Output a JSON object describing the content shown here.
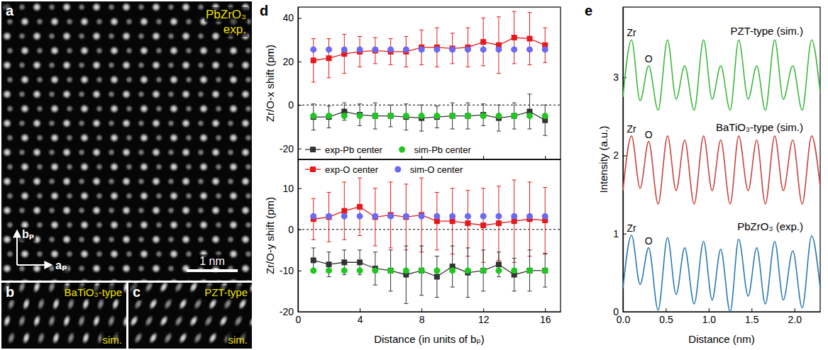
{
  "images": [
    {
      "panel": "a",
      "title": "PbZrO₃",
      "note": "exp.",
      "scale_bar": "1 nm",
      "axis_labels": [
        "bₚ",
        "aₚ"
      ]
    },
    {
      "panel": "b",
      "title": "BaTiO₃-type",
      "note": "sim."
    },
    {
      "panel": "c",
      "title": "PZT-type",
      "note": "sim."
    }
  ],
  "chart_data": [
    {
      "panel": "d",
      "type": "scatter",
      "ylabel": "Zr/O-x shift (pm)",
      "x": [
        1,
        2,
        3,
        4,
        5,
        6,
        7,
        8,
        9,
        10,
        11,
        12,
        13,
        14,
        15,
        16
      ],
      "xlim": [
        0,
        17
      ],
      "xticks": [
        0,
        4,
        8,
        12,
        16
      ],
      "ylim": [
        -25,
        45
      ],
      "yticks": [
        -20,
        0,
        20,
        40
      ],
      "tick_labels": "y",
      "legend": "lower left",
      "reference_line": 0,
      "series": [
        {
          "color": "#e5191c",
          "marker": "square",
          "line_style": "solid",
          "values": [
            20.5,
            21.5,
            23.5,
            24.5,
            25,
            24.5,
            24.5,
            26.5,
            26.5,
            26,
            26.5,
            29,
            27.5,
            31,
            30.5,
            27.5
          ],
          "errors": [
            10,
            9,
            9,
            7,
            6,
            6,
            7,
            8,
            9,
            7,
            9,
            11,
            13,
            12,
            12,
            8
          ]
        },
        {
          "color": "#6a6af5",
          "marker": "circle",
          "line_style": "none",
          "values": [
            25.5,
            25.5,
            25.5,
            25.5,
            25.5,
            25.5,
            25.5,
            25.5,
            25.5,
            25.5,
            25.5,
            25.5,
            25.5,
            25.5,
            25.5,
            25.5
          ]
        },
        {
          "name": "exp-Pb center",
          "color": "#333333",
          "marker": "square",
          "line_style": "solid",
          "values": [
            -5.5,
            -5.5,
            -3,
            -4.5,
            -5,
            -5,
            -5.5,
            -6,
            -5.5,
            -5,
            -5,
            -4.5,
            -6,
            -5,
            -3,
            -7
          ],
          "errors": [
            6,
            5,
            4,
            5,
            6,
            5,
            6,
            6,
            5,
            6,
            6,
            5,
            6,
            6,
            8,
            7
          ]
        },
        {
          "name": "sim-Pb center",
          "color": "#1ec81e",
          "marker": "circle",
          "line_style": "none",
          "values": [
            -5,
            -5,
            -5,
            -5,
            -5,
            -5,
            -5,
            -5,
            -5,
            -5,
            -5,
            -5,
            -5,
            -5,
            -5,
            -5
          ]
        }
      ]
    },
    {
      "type": "scatter",
      "ylabel": "Zr/O-y shift (pm)",
      "xlabel": "Distance (in units of bₚ)",
      "x": [
        1,
        2,
        3,
        4,
        5,
        6,
        7,
        8,
        9,
        10,
        11,
        12,
        13,
        14,
        15,
        16
      ],
      "xlim": [
        0,
        17
      ],
      "xticks": [
        0,
        4,
        8,
        12,
        16
      ],
      "ylim": [
        -20,
        17
      ],
      "yticks": [
        -20,
        -10,
        0,
        10
      ],
      "legend": "upper left",
      "reference_line": 0,
      "series": [
        {
          "name": "exp-O center",
          "color": "#e5191c",
          "marker": "square",
          "line_style": "solid",
          "values": [
            2.5,
            3,
            4.5,
            5.5,
            3,
            3.5,
            3,
            3.5,
            2,
            2,
            1.5,
            1,
            1.5,
            2,
            2.5,
            2.2
          ],
          "errors": [
            5,
            6,
            7,
            7,
            7,
            8,
            8,
            9,
            7,
            8,
            8,
            9,
            9,
            10,
            9,
            8
          ]
        },
        {
          "name": "sim-O center",
          "color": "#6a6af5",
          "marker": "circle",
          "line_style": "none",
          "values": [
            3.2,
            3.2,
            3.2,
            3.2,
            3.2,
            3.2,
            3.2,
            3.2,
            3.2,
            3.2,
            3.2,
            3.2,
            3.2,
            3.2,
            3.2,
            3.2
          ]
        },
        {
          "color": "#333333",
          "marker": "square",
          "line_style": "solid",
          "values": [
            -7.5,
            -8.5,
            -8,
            -8,
            -9.5,
            -10,
            -11,
            -10,
            -11.5,
            -9,
            -10.5,
            -10,
            -8.5,
            -11,
            -10,
            -10
          ],
          "errors": [
            3,
            3,
            3,
            3,
            4,
            5,
            7,
            6,
            5,
            5,
            6,
            5,
            3,
            4,
            5,
            4
          ]
        },
        {
          "color": "#1ec81e",
          "marker": "circle",
          "line_style": "none",
          "values": [
            -10,
            -10,
            -10,
            -10,
            -10,
            -10,
            -10,
            -10,
            -10,
            -10,
            -10,
            -10,
            -10,
            -10,
            -10,
            -10
          ]
        }
      ]
    },
    {
      "panel": "e",
      "type": "line",
      "xlabel": "Distance (nm)",
      "ylabel": "Intensity (a.u.)",
      "x": [
        0,
        0.1,
        0.2,
        0.3,
        0.41,
        0.52,
        0.62,
        0.72,
        0.83,
        0.94,
        1.04,
        1.14,
        1.25,
        1.35,
        1.46,
        1.56,
        1.66,
        1.77,
        1.87,
        1.98,
        2.09,
        2.2,
        2.3
      ],
      "xlim": [
        0,
        2.3
      ],
      "xticks": [
        {
          "value": 0,
          "label": "0.0"
        },
        {
          "value": 0.5,
          "label": "0.5"
        },
        {
          "value": 1,
          "label": "1.0"
        },
        {
          "value": 1.5,
          "label": "1.5"
        },
        {
          "value": 2,
          "label": "2.0"
        }
      ],
      "ylim": [
        0,
        3.9
      ],
      "yticks": [
        0,
        1,
        2,
        3
      ],
      "series": [
        {
          "name": "PZT-type (sim.)",
          "color": "#3cb83c",
          "line_style": "solid",
          "peak_labels": [
            "Zr",
            "O"
          ],
          "values": [
            2.75,
            3.48,
            2.7,
            3.15,
            2.58,
            3.48,
            2.72,
            3.15,
            2.58,
            3.48,
            2.72,
            3.15,
            2.58,
            3.48,
            2.72,
            3.15,
            2.58,
            3.48,
            2.72,
            3.15,
            2.58,
            3.48,
            2.8
          ]
        },
        {
          "name": "BaTiO₃-type (sim.)",
          "color": "#c8453f",
          "line_style": "solid",
          "peak_labels": [
            "Zr",
            "O"
          ],
          "values": [
            1.55,
            2.25,
            1.58,
            2.18,
            1.38,
            2.25,
            1.55,
            2.2,
            1.38,
            2.25,
            1.55,
            2.2,
            1.38,
            2.25,
            1.55,
            2.2,
            1.38,
            2.25,
            1.55,
            2.2,
            1.38,
            2.25,
            1.6
          ]
        },
        {
          "name": "PbZrO₃ (exp.)",
          "color": "#2a7ab0",
          "line_style": "solid",
          "peak_labels": [
            "Zr",
            "O"
          ],
          "values": [
            0.3,
            0.98,
            0.35,
            0.82,
            0.02,
            0.95,
            0.22,
            0.82,
            0.1,
            0.9,
            0.15,
            0.8,
            0,
            0.93,
            0.2,
            0.82,
            0.1,
            0.9,
            0.15,
            0.78,
            0.05,
            0.97,
            0.3
          ]
        }
      ]
    }
  ]
}
